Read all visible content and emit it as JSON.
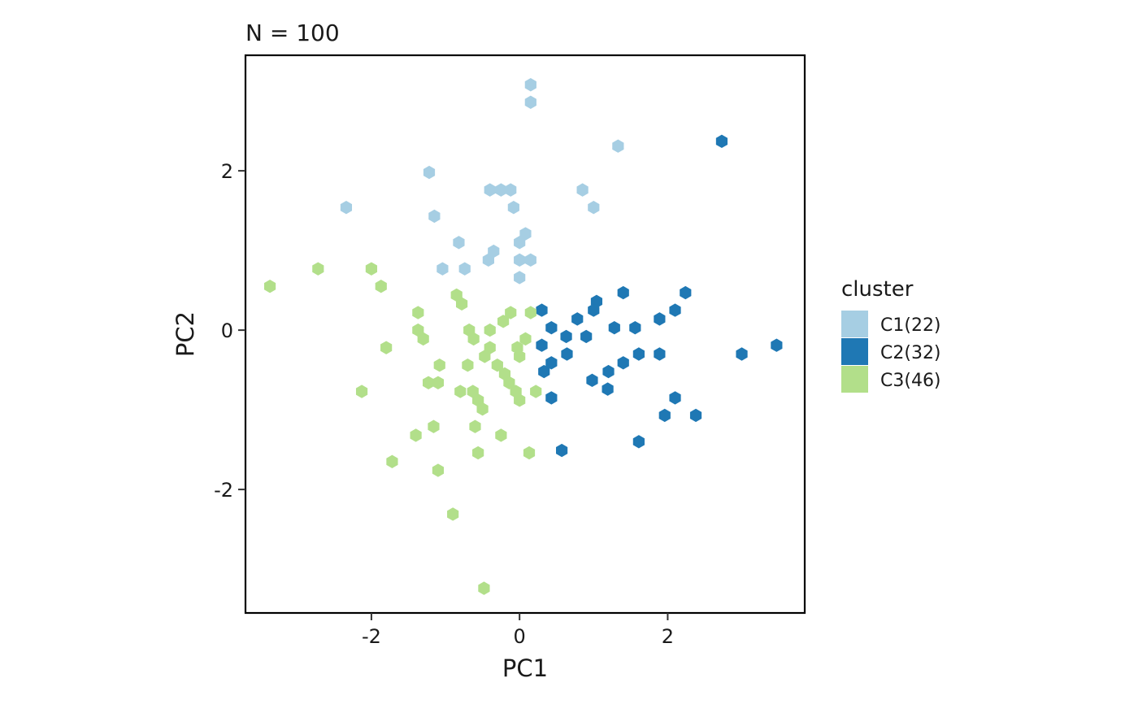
{
  "chart_data": {
    "type": "scatter",
    "title": "N = 100",
    "xlabel": "PC1",
    "ylabel": "PC2",
    "xlim": [
      -3.7,
      3.85
    ],
    "ylim": [
      -3.55,
      3.45
    ],
    "x_ticks": [
      -2,
      0,
      2
    ],
    "y_ticks": [
      -2,
      0,
      2
    ],
    "x_tick_labels": [
      "-2",
      "0",
      "2"
    ],
    "y_tick_labels": [
      "-2",
      "0",
      "2"
    ],
    "grid": false,
    "marker": "hexagon",
    "legend": {
      "title": "cluster",
      "position": "right",
      "entries": [
        "C1(22)",
        "C2(32)",
        "C3(46)"
      ]
    },
    "series": [
      {
        "name": "C1(22)",
        "color": "#A6CEE3",
        "points": [
          [
            0.15,
            3.08
          ],
          [
            0.15,
            2.86
          ],
          [
            1.33,
            2.31
          ],
          [
            -1.22,
            1.98
          ],
          [
            -0.4,
            1.76
          ],
          [
            -0.25,
            1.76
          ],
          [
            0.85,
            1.76
          ],
          [
            -2.34,
            1.54
          ],
          [
            1.0,
            1.54
          ],
          [
            -1.15,
            1.43
          ],
          [
            0.08,
            1.21
          ],
          [
            -0.82,
            1.1
          ],
          [
            0.0,
            1.1
          ],
          [
            -0.35,
            0.99
          ],
          [
            -0.42,
            0.88
          ],
          [
            0.0,
            0.88
          ],
          [
            0.15,
            0.88
          ],
          [
            -1.04,
            0.77
          ],
          [
            -0.74,
            0.77
          ],
          [
            0.0,
            0.66
          ],
          [
            -0.12,
            1.76
          ],
          [
            -0.08,
            1.54
          ]
        ]
      },
      {
        "name": "C2(32)",
        "color": "#1F78B4",
        "points": [
          [
            2.73,
            2.37
          ],
          [
            1.4,
            0.47
          ],
          [
            2.24,
            0.47
          ],
          [
            1.04,
            0.36
          ],
          [
            0.3,
            0.25
          ],
          [
            1.0,
            0.25
          ],
          [
            2.1,
            0.25
          ],
          [
            0.78,
            0.14
          ],
          [
            1.89,
            0.14
          ],
          [
            0.43,
            0.03
          ],
          [
            1.28,
            0.03
          ],
          [
            1.56,
            0.03
          ],
          [
            0.63,
            -0.08
          ],
          [
            0.9,
            -0.08
          ],
          [
            3.47,
            -0.19
          ],
          [
            0.3,
            -0.19
          ],
          [
            0.64,
            -0.3
          ],
          [
            1.61,
            -0.3
          ],
          [
            1.89,
            -0.3
          ],
          [
            3.0,
            -0.3
          ],
          [
            0.43,
            -0.41
          ],
          [
            1.4,
            -0.41
          ],
          [
            0.33,
            -0.52
          ],
          [
            0.98,
            -0.63
          ],
          [
            1.19,
            -0.74
          ],
          [
            0.43,
            -0.85
          ],
          [
            2.1,
            -0.85
          ],
          [
            1.96,
            -1.07
          ],
          [
            2.38,
            -1.07
          ],
          [
            1.61,
            -1.4
          ],
          [
            0.57,
            -1.51
          ],
          [
            1.2,
            -0.52
          ]
        ]
      },
      {
        "name": "C3(46)",
        "color": "#B2DF8A",
        "points": [
          [
            -3.37,
            0.55
          ],
          [
            -2.72,
            0.77
          ],
          [
            -2.0,
            0.77
          ],
          [
            -1.87,
            0.55
          ],
          [
            -0.85,
            0.44
          ],
          [
            -0.78,
            0.33
          ],
          [
            -1.37,
            0.22
          ],
          [
            -0.12,
            0.22
          ],
          [
            0.15,
            0.22
          ],
          [
            -0.22,
            0.11
          ],
          [
            -1.37,
            0.0
          ],
          [
            -0.4,
            0.0
          ],
          [
            -1.3,
            -0.11
          ],
          [
            -0.62,
            -0.11
          ],
          [
            0.08,
            -0.11
          ],
          [
            -1.8,
            -0.22
          ],
          [
            -0.4,
            -0.22
          ],
          [
            -0.03,
            -0.22
          ],
          [
            -0.47,
            -0.33
          ],
          [
            -1.08,
            -0.44
          ],
          [
            -0.7,
            -0.44
          ],
          [
            -0.2,
            -0.55
          ],
          [
            -1.23,
            -0.66
          ],
          [
            -1.1,
            -0.66
          ],
          [
            -0.14,
            -0.66
          ],
          [
            -2.13,
            -0.77
          ],
          [
            -0.8,
            -0.77
          ],
          [
            -0.63,
            -0.77
          ],
          [
            -0.05,
            -0.77
          ],
          [
            0.22,
            -0.77
          ],
          [
            -0.56,
            -0.88
          ],
          [
            0.0,
            -0.88
          ],
          [
            -0.5,
            -0.99
          ],
          [
            -1.16,
            -1.21
          ],
          [
            -0.6,
            -1.21
          ],
          [
            -1.4,
            -1.32
          ],
          [
            -0.25,
            -1.32
          ],
          [
            -0.56,
            -1.54
          ],
          [
            0.13,
            -1.54
          ],
          [
            -1.72,
            -1.65
          ],
          [
            -1.1,
            -1.76
          ],
          [
            -0.9,
            -2.31
          ],
          [
            -0.48,
            -3.24
          ],
          [
            -0.3,
            -0.44
          ],
          [
            -0.68,
            0.0
          ],
          [
            0.0,
            -0.33
          ]
        ]
      }
    ]
  }
}
